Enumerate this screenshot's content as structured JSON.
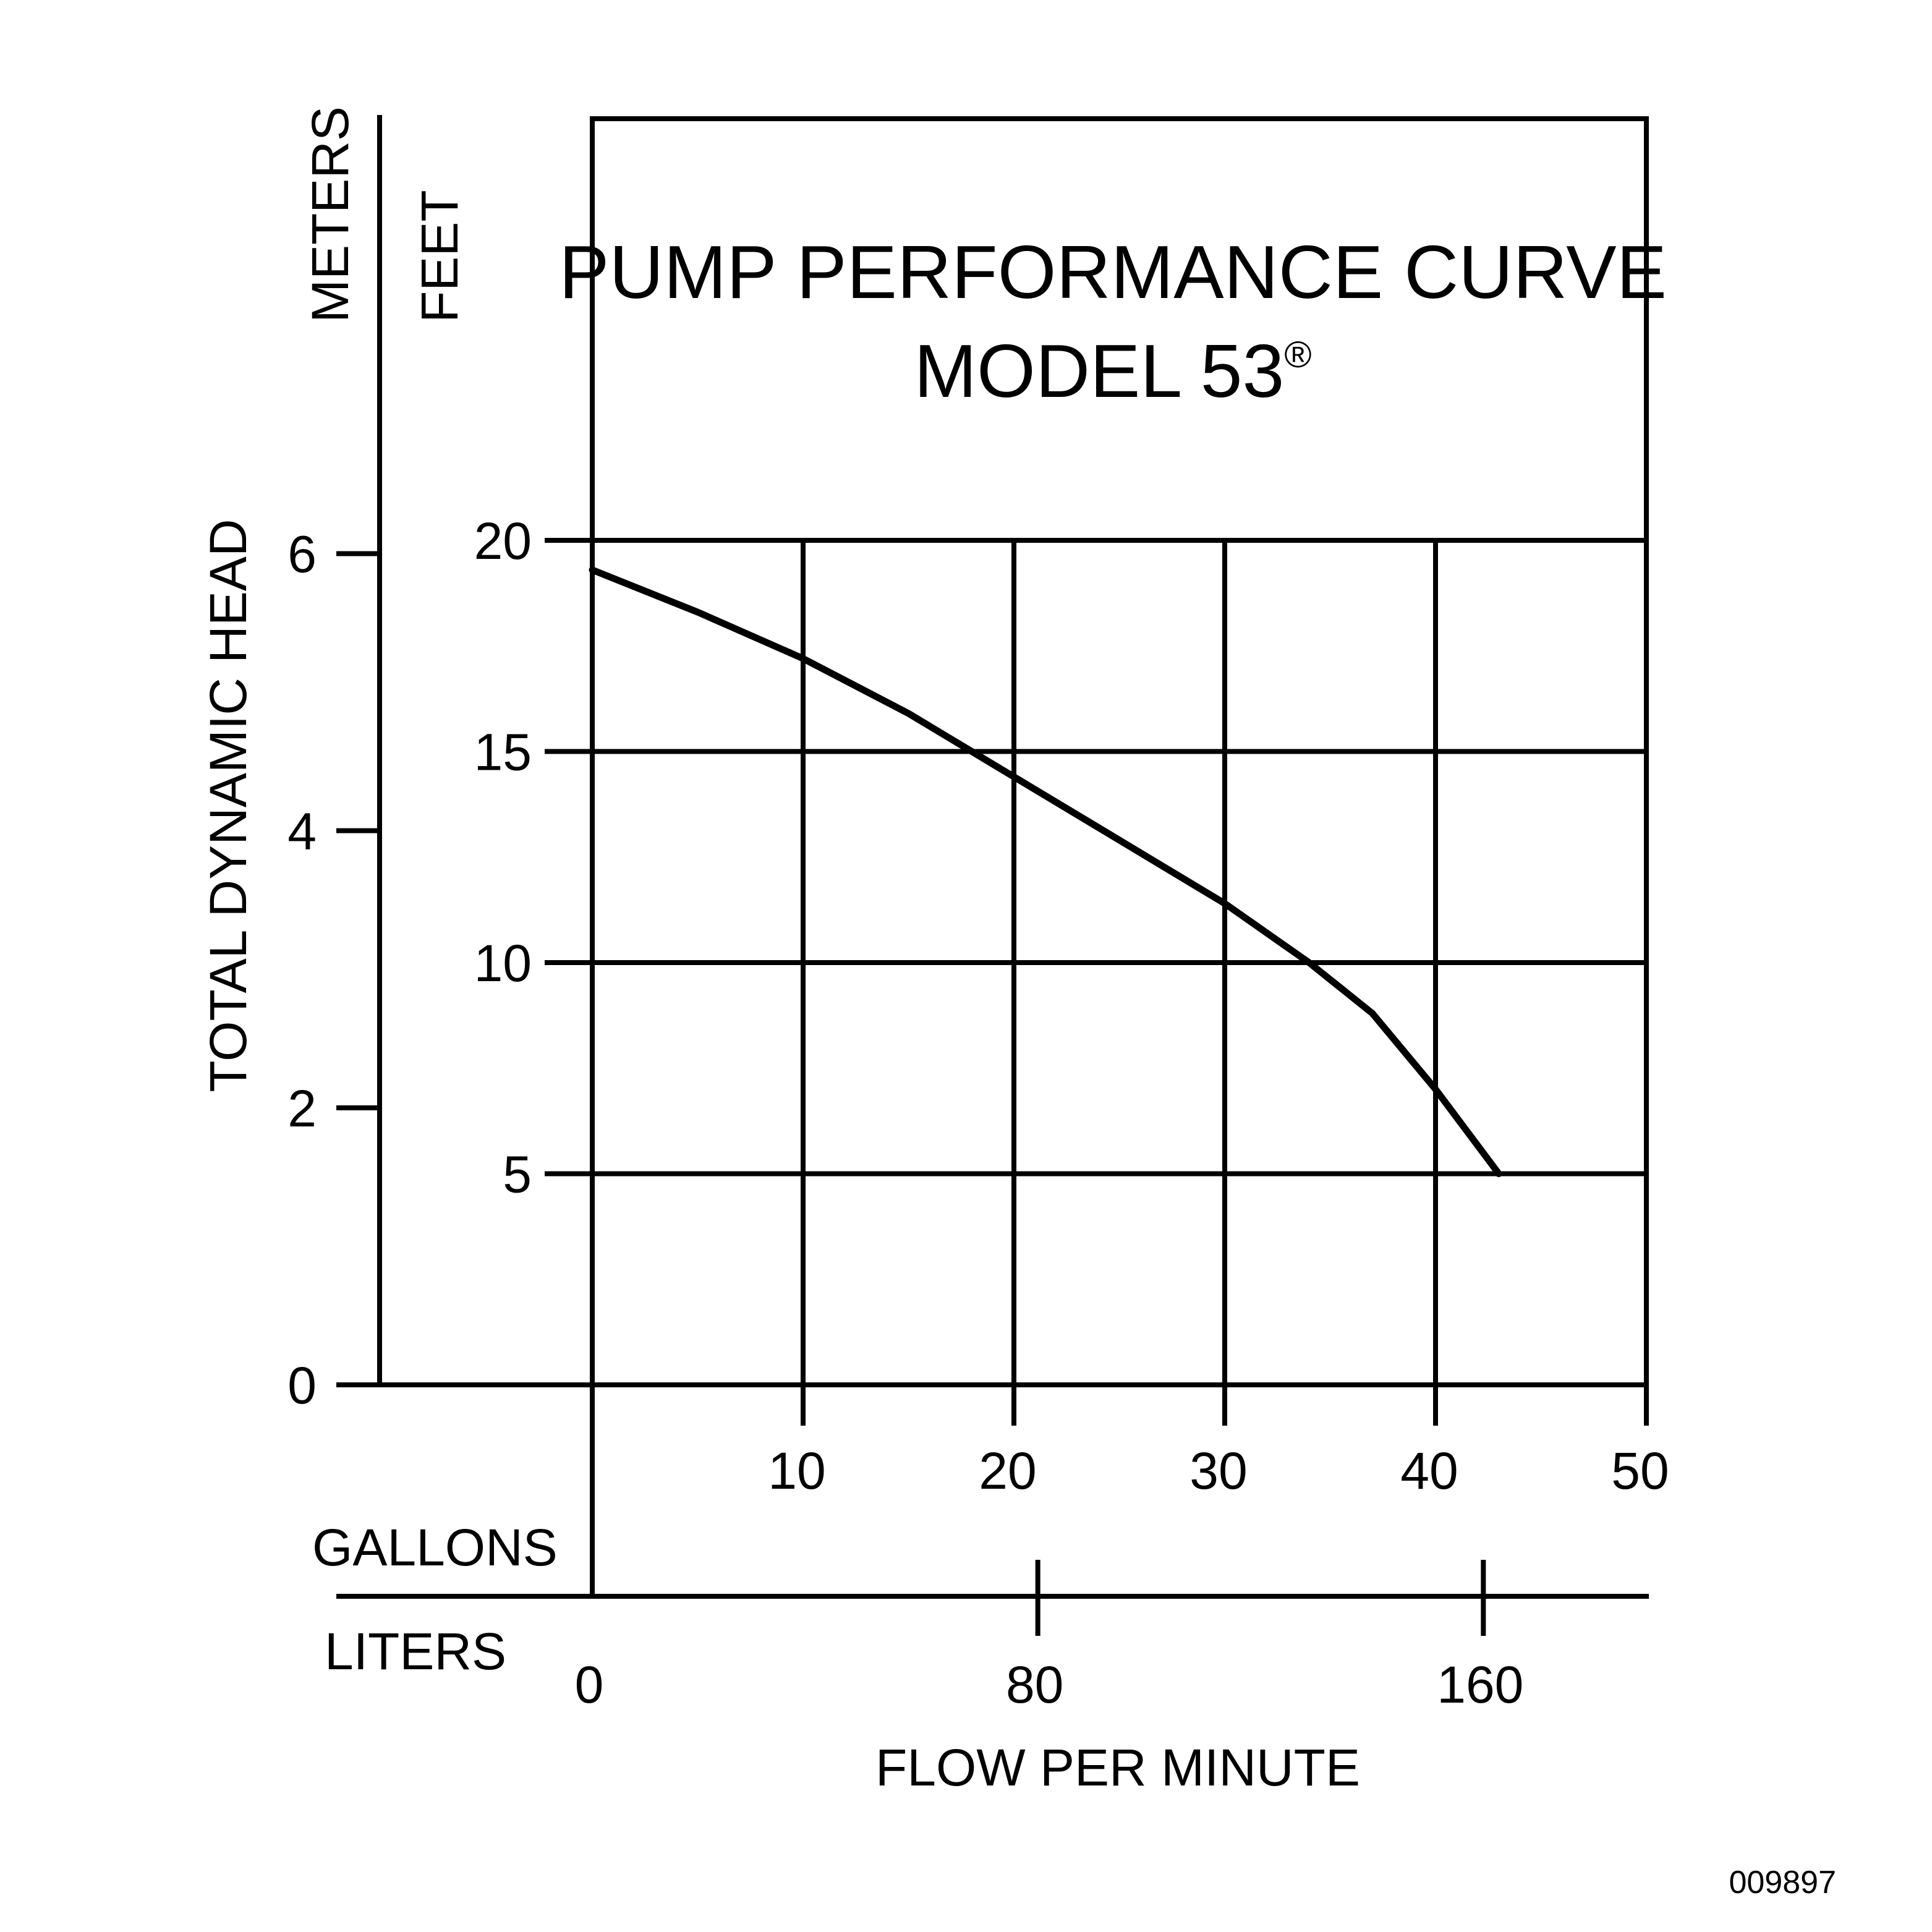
{
  "chart_data": {
    "type": "line",
    "title": "PUMP PERFORMANCE CURVE",
    "subtitle": "MODEL 53",
    "subtitle_mark": "®",
    "ylabel": "TOTAL DYNAMIC HEAD",
    "y_unit_labels": [
      "METERS",
      "FEET"
    ],
    "xlabel": "FLOW PER MINUTE",
    "x_unit_labels": [
      "GALLONS",
      "LITERS"
    ],
    "xlim": [
      0,
      50
    ],
    "ylim": [
      0,
      20
    ],
    "x_ticks_gallons": [
      "10",
      "20",
      "30",
      "40",
      "50"
    ],
    "x_ticks_liters": [
      "0",
      "80",
      "160"
    ],
    "y_ticks_feet": [
      "5",
      "10",
      "15",
      "20"
    ],
    "y_ticks_meters": [
      "0",
      "2",
      "4",
      "6"
    ],
    "grid": true,
    "series": [
      {
        "x": [
          0,
          5,
          10,
          15,
          19,
          24,
          30,
          34,
          37,
          40,
          43
        ],
        "y": [
          19.3,
          18.3,
          17.2,
          15.9,
          14.7,
          13.2,
          11.4,
          10.0,
          8.8,
          7.0,
          5.0
        ]
      }
    ],
    "figure_id": "009897"
  }
}
